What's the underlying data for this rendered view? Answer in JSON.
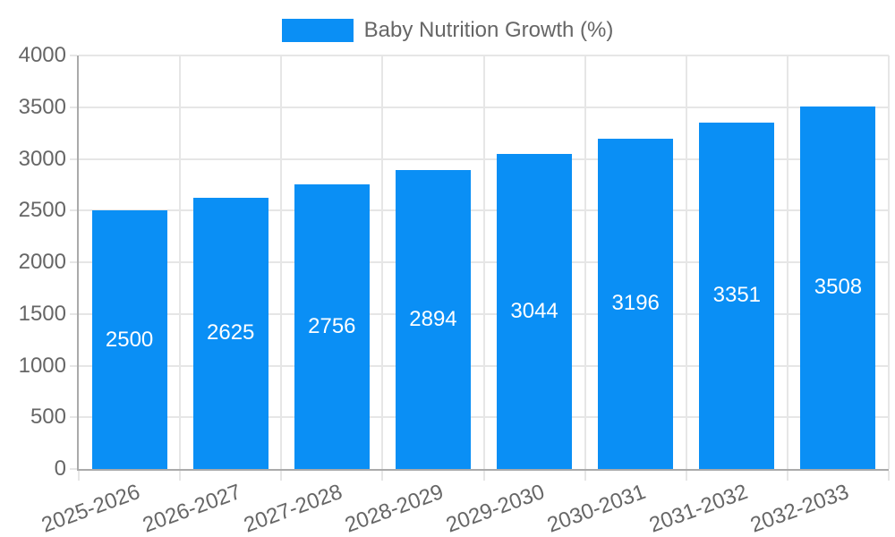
{
  "legend": {
    "label": "Baby Nutrition Growth (%)"
  },
  "chart_data": {
    "type": "bar",
    "title": "",
    "categories": [
      "2025-2026",
      "2026-2027",
      "2027-2028",
      "2028-2029",
      "2029-2030",
      "2030-2031",
      "2031-2032",
      "2032-2033"
    ],
    "series": [
      {
        "name": "Baby Nutrition Growth (%)",
        "values": [
          2500,
          2625,
          2756,
          2894,
          3044,
          3196,
          3351,
          3508
        ]
      }
    ],
    "xlabel": "",
    "ylabel": "",
    "ylim": [
      0,
      4000
    ],
    "ytick_step": 500,
    "yticks": [
      0,
      500,
      1000,
      1500,
      2000,
      2500,
      3000,
      3500,
      4000
    ],
    "grid": true,
    "legend_position": "top-center",
    "value_labels": "inside-center",
    "x_label_rotation_deg": -20
  },
  "colors": {
    "bar": "#0A8FF5",
    "grid": "#E6E6E6",
    "axis": "#AAAAAA",
    "tick_label": "#666666",
    "legend_text": "#666666",
    "value_label": "#FFFFFF",
    "background": "#FFFFFF"
  }
}
